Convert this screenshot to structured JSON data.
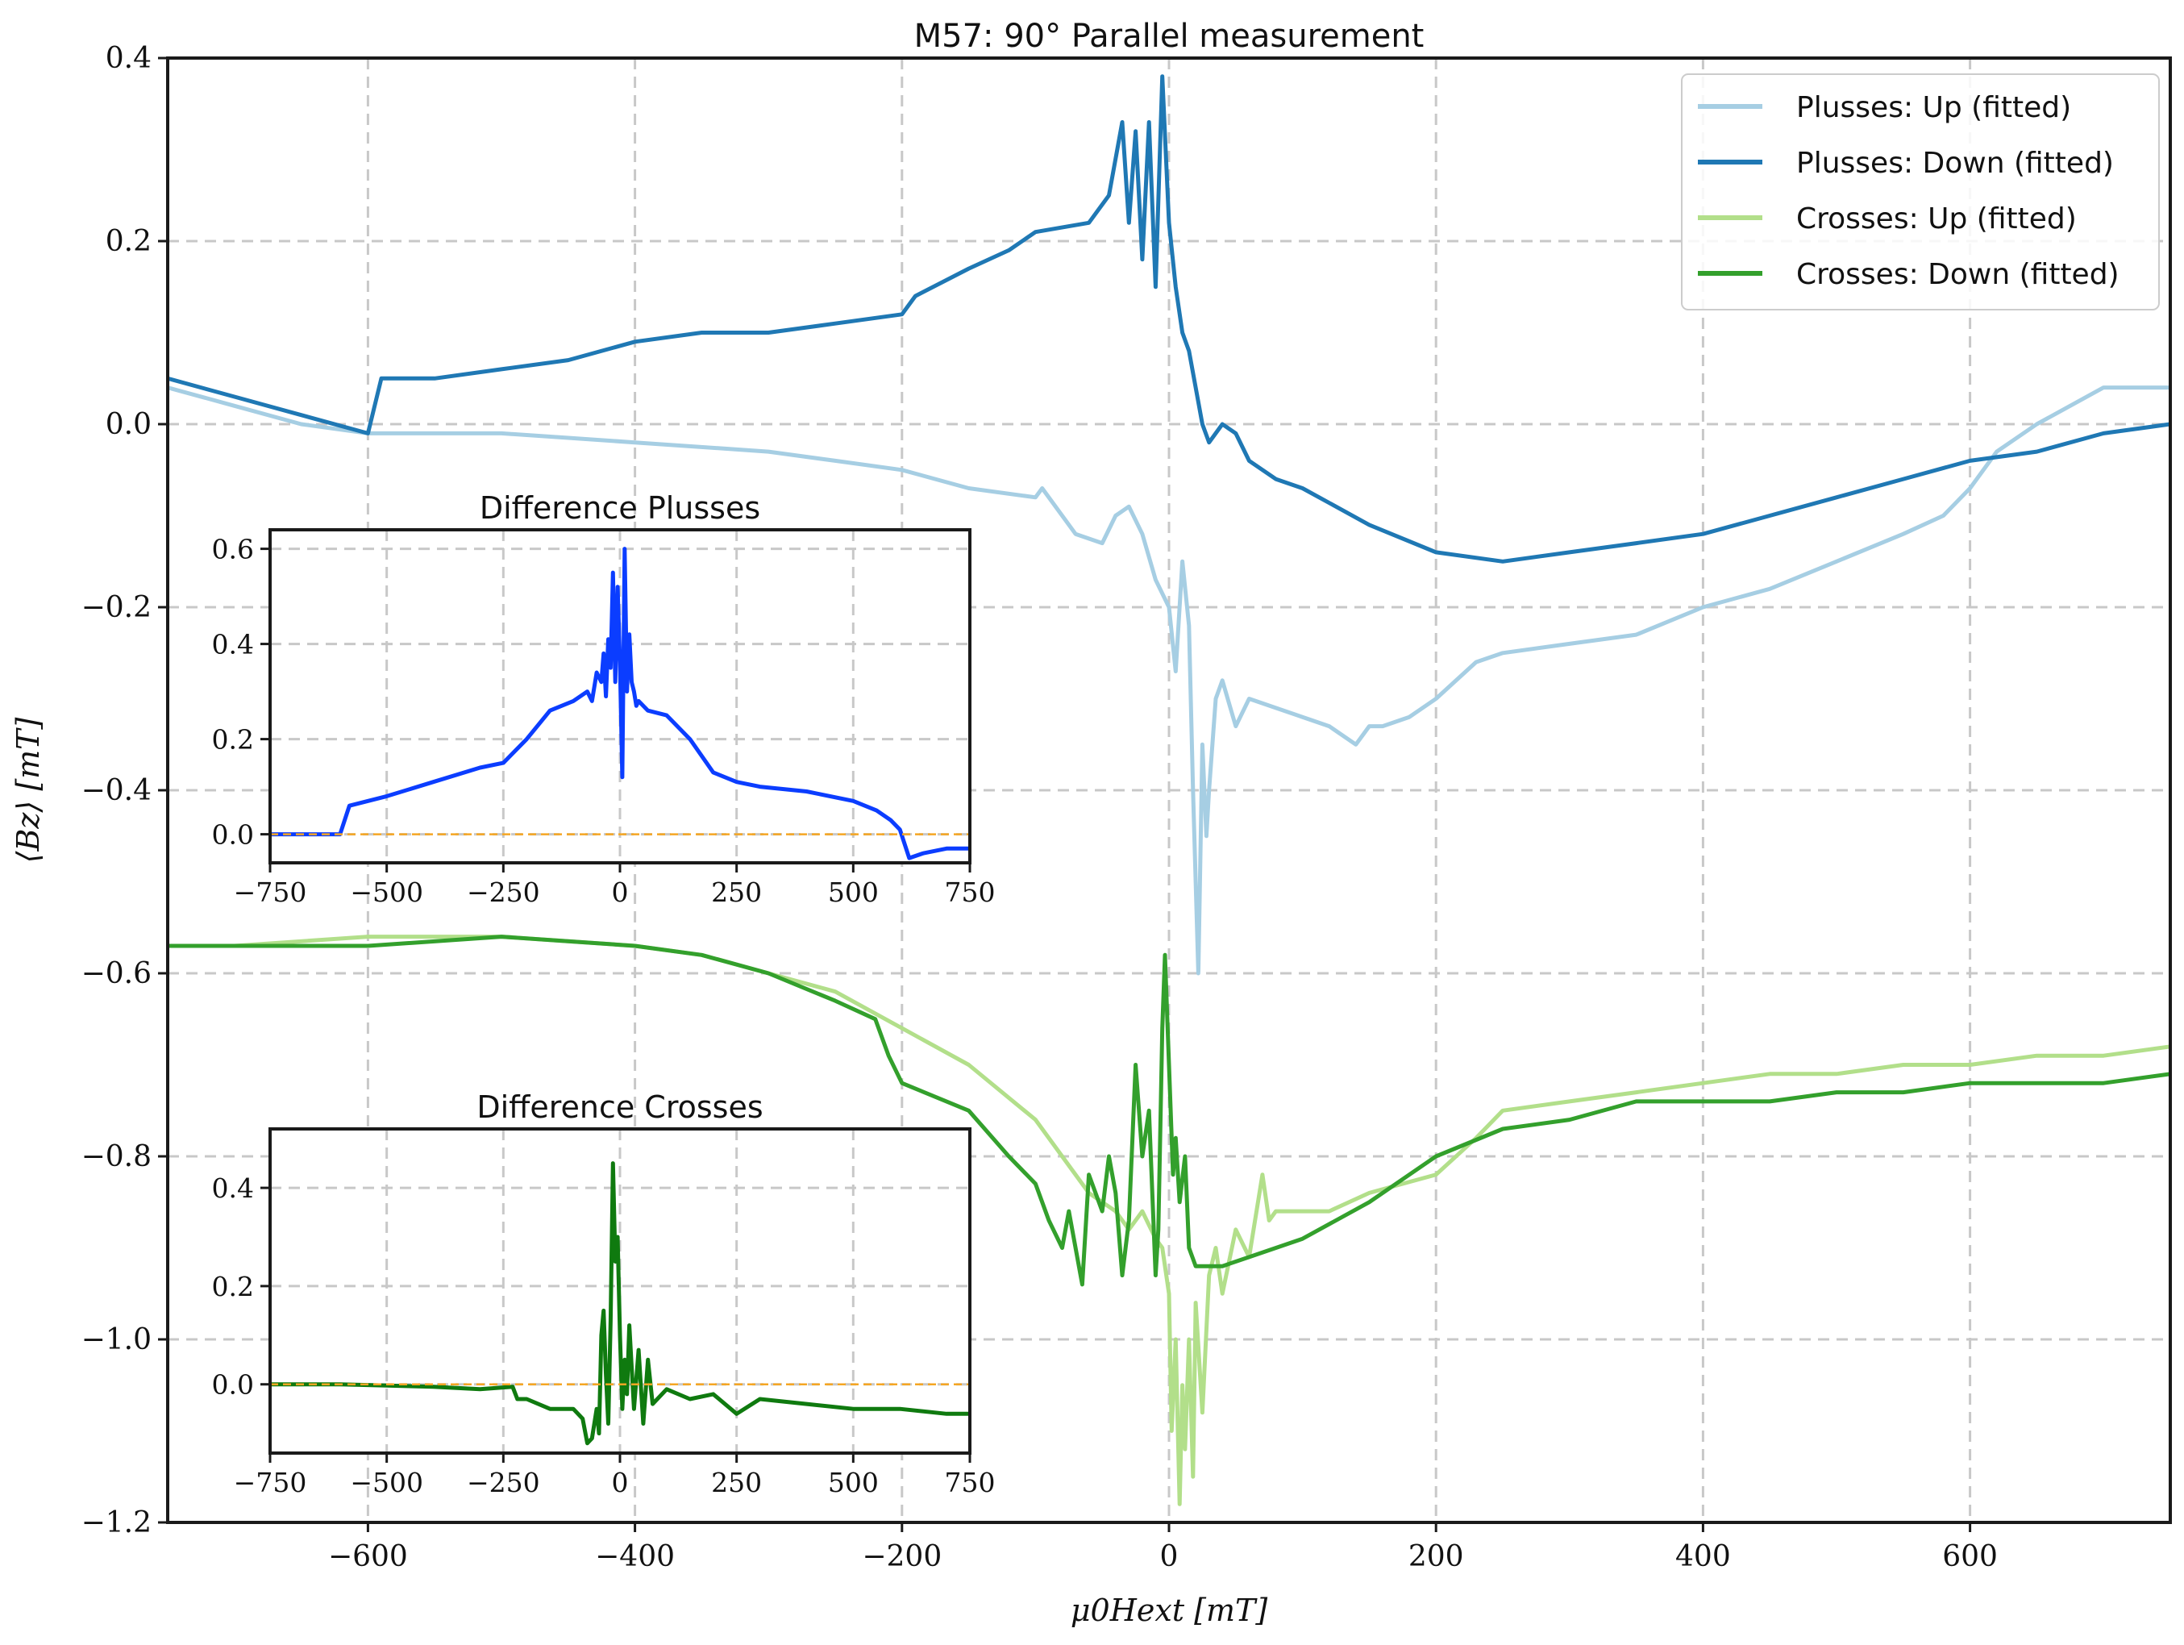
{
  "chart_data": [
    {
      "type": "line",
      "title": "M57: 90° Parallel measurement",
      "xlabel": "μ0Hext [mT]",
      "ylabel": "⟨Bz⟩ [mT]",
      "xlim": [
        -750,
        750
      ],
      "ylim": [
        -1.2,
        0.4
      ],
      "xticks": [
        "−600",
        "−400",
        "−200",
        "0",
        "200",
        "400",
        "600"
      ],
      "xtick_values": [
        -600,
        -400,
        -200,
        0,
        200,
        400,
        600
      ],
      "yticks": [
        "0.4",
        "0.2",
        "0.0",
        "−0.2",
        "−0.4",
        "−0.6",
        "−0.8",
        "−1.0",
        "−1.2"
      ],
      "ytick_values": [
        0.4,
        0.2,
        0.0,
        -0.2,
        -0.4,
        -0.6,
        -0.8,
        -1.0,
        -1.2
      ],
      "grid": true,
      "legend_position": "top-right",
      "series": [
        {
          "name": "Plusses: Up (fitted)",
          "color": "#a6cee3",
          "x": [
            -750,
            -700,
            -650,
            -600,
            -500,
            -450,
            -400,
            -300,
            -250,
            -200,
            -150,
            -100,
            -95,
            -70,
            -50,
            -40,
            -30,
            -20,
            -10,
            0,
            5,
            10,
            15,
            18,
            20,
            22,
            25,
            28,
            30,
            35,
            40,
            50,
            60,
            80,
            100,
            120,
            140,
            150,
            160,
            180,
            200,
            230,
            250,
            300,
            350,
            400,
            450,
            500,
            550,
            580,
            600,
            620,
            650,
            700,
            750
          ],
          "y": [
            0.04,
            0.02,
            0.0,
            -0.01,
            -0.01,
            -0.015,
            -0.02,
            -0.03,
            -0.04,
            -0.05,
            -0.07,
            -0.08,
            -0.07,
            -0.12,
            -0.13,
            -0.1,
            -0.09,
            -0.12,
            -0.17,
            -0.2,
            -0.27,
            -0.15,
            -0.22,
            -0.4,
            -0.5,
            -0.6,
            -0.35,
            -0.45,
            -0.4,
            -0.3,
            -0.28,
            -0.33,
            -0.3,
            -0.31,
            -0.32,
            -0.33,
            -0.35,
            -0.33,
            -0.33,
            -0.32,
            -0.3,
            -0.26,
            -0.25,
            -0.24,
            -0.23,
            -0.2,
            -0.18,
            -0.15,
            -0.12,
            -0.1,
            -0.07,
            -0.03,
            0.0,
            0.04,
            0.04
          ]
        },
        {
          "name": "Plusses: Down (fitted)",
          "color": "#1f78b4",
          "x": [
            -750,
            -700,
            -650,
            -600,
            -590,
            -580,
            -550,
            -500,
            -450,
            -400,
            -350,
            -300,
            -250,
            -200,
            -190,
            -150,
            -120,
            -100,
            -60,
            -45,
            -35,
            -30,
            -25,
            -20,
            -15,
            -10,
            -5,
            0,
            5,
            10,
            15,
            20,
            25,
            30,
            40,
            50,
            60,
            80,
            100,
            150,
            200,
            250,
            300,
            350,
            400,
            450,
            500,
            550,
            600,
            650,
            700,
            750
          ],
          "y": [
            0.05,
            0.03,
            0.01,
            -0.01,
            0.05,
            0.05,
            0.05,
            0.06,
            0.07,
            0.09,
            0.1,
            0.1,
            0.11,
            0.12,
            0.14,
            0.17,
            0.19,
            0.21,
            0.22,
            0.25,
            0.33,
            0.22,
            0.32,
            0.18,
            0.33,
            0.15,
            0.38,
            0.22,
            0.15,
            0.1,
            0.08,
            0.04,
            0.0,
            -0.02,
            0.0,
            -0.01,
            -0.04,
            -0.06,
            -0.07,
            -0.11,
            -0.14,
            -0.15,
            -0.14,
            -0.13,
            -0.12,
            -0.1,
            -0.08,
            -0.06,
            -0.04,
            -0.03,
            -0.01,
            0.0
          ]
        },
        {
          "name": "Crosses: Up (fitted)",
          "color": "#b2df8a",
          "x": [
            -750,
            -700,
            -600,
            -500,
            -400,
            -350,
            -300,
            -250,
            -200,
            -150,
            -100,
            -80,
            -60,
            -50,
            -40,
            -30,
            -20,
            -10,
            -5,
            0,
            2,
            5,
            8,
            10,
            12,
            15,
            18,
            20,
            25,
            30,
            35,
            40,
            50,
            60,
            70,
            75,
            80,
            100,
            120,
            150,
            200,
            230,
            250,
            300,
            350,
            400,
            450,
            500,
            550,
            600,
            650,
            700,
            750
          ],
          "y": [
            -0.57,
            -0.57,
            -0.56,
            -0.56,
            -0.57,
            -0.58,
            -0.6,
            -0.62,
            -0.66,
            -0.7,
            -0.76,
            -0.8,
            -0.84,
            -0.85,
            -0.86,
            -0.88,
            -0.86,
            -0.89,
            -0.9,
            -0.95,
            -1.1,
            -1.0,
            -1.18,
            -1.05,
            -1.12,
            -1.0,
            -1.15,
            -0.96,
            -1.08,
            -0.93,
            -0.9,
            -0.95,
            -0.88,
            -0.91,
            -0.82,
            -0.87,
            -0.86,
            -0.86,
            -0.86,
            -0.84,
            -0.82,
            -0.78,
            -0.75,
            -0.74,
            -0.73,
            -0.72,
            -0.71,
            -0.71,
            -0.7,
            -0.7,
            -0.69,
            -0.69,
            -0.68
          ]
        },
        {
          "name": "Crosses: Down (fitted)",
          "color": "#33a02c",
          "x": [
            -750,
            -700,
            -600,
            -500,
            -400,
            -350,
            -300,
            -250,
            -220,
            -210,
            -200,
            -150,
            -120,
            -100,
            -90,
            -80,
            -75,
            -70,
            -65,
            -60,
            -50,
            -45,
            -40,
            -35,
            -30,
            -25,
            -20,
            -15,
            -10,
            -8,
            -5,
            -3,
            0,
            3,
            5,
            8,
            12,
            15,
            20,
            30,
            40,
            60,
            100,
            150,
            200,
            250,
            300,
            350,
            400,
            450,
            500,
            550,
            600,
            650,
            700,
            750
          ],
          "y": [
            -0.57,
            -0.57,
            -0.57,
            -0.56,
            -0.57,
            -0.58,
            -0.6,
            -0.63,
            -0.65,
            -0.69,
            -0.72,
            -0.75,
            -0.8,
            -0.83,
            -0.87,
            -0.9,
            -0.86,
            -0.9,
            -0.94,
            -0.82,
            -0.86,
            -0.8,
            -0.84,
            -0.93,
            -0.87,
            -0.7,
            -0.8,
            -0.75,
            -0.93,
            -0.88,
            -0.66,
            -0.58,
            -0.7,
            -0.82,
            -0.78,
            -0.85,
            -0.8,
            -0.9,
            -0.92,
            -0.92,
            -0.92,
            -0.91,
            -0.89,
            -0.85,
            -0.8,
            -0.77,
            -0.76,
            -0.74,
            -0.74,
            -0.74,
            -0.73,
            -0.73,
            -0.72,
            -0.72,
            -0.72,
            -0.71
          ]
        }
      ]
    },
    {
      "type": "line",
      "title": "Difference Plusses",
      "xlim": [
        -750,
        750
      ],
      "ylim": [
        -0.06,
        0.64
      ],
      "xticks": [
        "−750",
        "−500",
        "−250",
        "0",
        "250",
        "500",
        "750"
      ],
      "xtick_values": [
        -750,
        -500,
        -250,
        0,
        250,
        500,
        750
      ],
      "yticks": [
        "0.6",
        "0.4",
        "0.2",
        "0.0"
      ],
      "ytick_values": [
        0.6,
        0.4,
        0.2,
        0.0
      ],
      "grid": true,
      "series": [
        {
          "color": "#0b3dff",
          "x": [
            -750,
            -700,
            -620,
            -600,
            -580,
            -500,
            -400,
            -300,
            -250,
            -200,
            -150,
            -100,
            -70,
            -60,
            -50,
            -40,
            -35,
            -30,
            -25,
            -20,
            -15,
            -10,
            -5,
            0,
            5,
            10,
            15,
            20,
            25,
            30,
            35,
            40,
            60,
            100,
            150,
            200,
            250,
            300,
            400,
            500,
            550,
            580,
            600,
            620,
            650,
            700,
            750
          ],
          "y": [
            0.0,
            0.0,
            0.0,
            0.0,
            0.06,
            0.08,
            0.11,
            0.14,
            0.15,
            0.2,
            0.26,
            0.28,
            0.3,
            0.28,
            0.34,
            0.32,
            0.38,
            0.29,
            0.41,
            0.35,
            0.55,
            0.32,
            0.52,
            0.36,
            0.12,
            0.6,
            0.3,
            0.42,
            0.32,
            0.3,
            0.27,
            0.28,
            0.26,
            0.25,
            0.2,
            0.13,
            0.11,
            0.1,
            0.09,
            0.07,
            0.05,
            0.03,
            0.01,
            -0.05,
            -0.04,
            -0.03,
            -0.03
          ]
        },
        {
          "color": "#f5a623",
          "x": [
            -750,
            750
          ],
          "y": [
            0.0,
            0.0
          ]
        }
      ]
    },
    {
      "type": "line",
      "title": "Difference Crosses",
      "xlim": [
        -750,
        750
      ],
      "ylim": [
        -0.14,
        0.52
      ],
      "xticks": [
        "−750",
        "−500",
        "−250",
        "0",
        "250",
        "500",
        "750"
      ],
      "xtick_values": [
        -750,
        -500,
        -250,
        0,
        250,
        500,
        750
      ],
      "yticks": [
        "0.4",
        "0.2",
        "0.0"
      ],
      "ytick_values": [
        0.4,
        0.2,
        0.0
      ],
      "grid": true,
      "series": [
        {
          "color": "#0f7a0f",
          "x": [
            -750,
            -600,
            -400,
            -300,
            -230,
            -220,
            -200,
            -150,
            -100,
            -80,
            -70,
            -60,
            -50,
            -45,
            -40,
            -35,
            -30,
            -25,
            -20,
            -15,
            -10,
            -5,
            0,
            5,
            10,
            15,
            20,
            30,
            40,
            50,
            60,
            70,
            100,
            150,
            200,
            250,
            300,
            400,
            500,
            600,
            700,
            750
          ],
          "y": [
            0.0,
            0.0,
            -0.005,
            -0.01,
            -0.005,
            -0.03,
            -0.03,
            -0.05,
            -0.05,
            -0.07,
            -0.12,
            -0.11,
            -0.05,
            -0.1,
            0.1,
            0.15,
            0.02,
            -0.08,
            0.13,
            0.45,
            0.25,
            0.3,
            0.1,
            -0.05,
            0.05,
            -0.02,
            0.12,
            -0.05,
            0.07,
            -0.08,
            0.05,
            -0.04,
            -0.01,
            -0.03,
            -0.02,
            -0.06,
            -0.03,
            -0.04,
            -0.05,
            -0.05,
            -0.06,
            -0.06
          ]
        },
        {
          "color": "#f5a623",
          "x": [
            -750,
            750
          ],
          "y": [
            0.0,
            0.0
          ]
        }
      ]
    }
  ]
}
